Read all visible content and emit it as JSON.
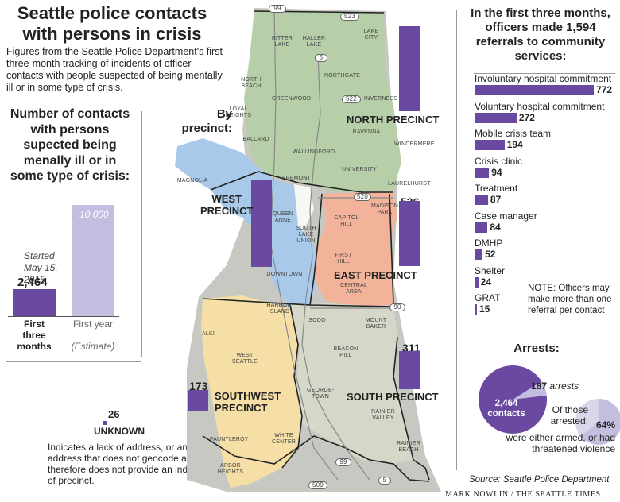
{
  "title": "Seattle police contacts with persons in crisis",
  "intro": "Figures from the Seattle Police Department's first three-month tracking of incidents of officer contacts with people suspected of being mentally ill or in some type of crisis.",
  "colors": {
    "purple": "#6a4aa0",
    "light_purple": "#c3bde0",
    "north": "#b6cfa9",
    "west": "#a9c9ea",
    "east": "#f3b29a",
    "southwest": "#f5dfa6",
    "south": "#cfd1c4"
  },
  "chart_data": [
    {
      "type": "bar",
      "title": "Number of contacts with persons supected being menally ill or in some type of crisis:",
      "annotation": "Started May 15, 2015",
      "categories": [
        "First three months",
        "First year (Estimate)"
      ],
      "values": [
        2464,
        10000
      ],
      "value_labels": [
        "2,464",
        "10,000"
      ]
    },
    {
      "type": "bar",
      "title": "By precinct:",
      "categories": [
        "North Precinct",
        "West Precinct",
        "East Precinct",
        "South Precinct",
        "Southwest Precinct",
        "Unknown"
      ],
      "values": [
        699,
        719,
        536,
        311,
        173,
        26
      ]
    },
    {
      "type": "bar",
      "title": "In the first three months, officers made 1,594 referrals to community services:",
      "categories": [
        "Involuntary hospital commitment",
        "Voluntary hospital commitment",
        "Mobile crisis team",
        "Crisis clinic",
        "Treatment",
        "Case manager",
        "DMHP",
        "Shelter",
        "GRAT"
      ],
      "values": [
        772,
        272,
        194,
        94,
        87,
        84,
        52,
        24,
        15
      ]
    },
    {
      "type": "pie",
      "title": "Arrests:",
      "slices": [
        {
          "label": "contacts",
          "value": 2464
        },
        {
          "label": "arrests",
          "value": 187
        }
      ]
    },
    {
      "type": "pie",
      "slices": [
        {
          "label": "were either armed, or had threatened violence",
          "value": 64
        },
        {
          "label": "other",
          "value": 36
        }
      ]
    }
  ],
  "left": {
    "heading": "Number of contacts with persons supected being menally ill or in some type of crisis:",
    "started": "Started May 15, 2015",
    "bar1_value": "2,464",
    "bar1_label": "First three months",
    "bar2_value": "10,000",
    "bar2_label": "First year",
    "bar2_sub": "(Estimate)"
  },
  "unknown": {
    "value": "26",
    "label": "UNKNOWN",
    "text": "Indicates a lack of address, or an address that does not geocode and therefore does not provide an indication of precinct."
  },
  "map": {
    "by_precinct": "By precinct:",
    "north": {
      "value": "699",
      "name": "NORTH PRECINCT"
    },
    "west": {
      "value": "719",
      "name1": "WEST",
      "name2": "PRECINCT"
    },
    "east": {
      "value": "536",
      "name": "EAST PRECINCT"
    },
    "south": {
      "value": "311",
      "name": "SOUTH PRECINCT"
    },
    "southwest": {
      "value": "173",
      "name1": "SOUTHWEST",
      "name2": "PRECINCT"
    },
    "neighborhoods": [
      "BITTER LAKE",
      "HALLER LAKE",
      "LAKE CITY",
      "NORTHGATE",
      "NORTH BEACH",
      "GREENWOOD",
      "INVERNESS",
      "LOYAL HEIGHTS",
      "RAVENNA",
      "BALLARD",
      "WALLINGFORD",
      "WINDERMERE",
      "UNIVERSITY",
      "FREMONT",
      "LAURELHURST",
      "MAGNOLIA",
      "QUEEN ANNE",
      "MADISON PARK",
      "CAPITOL HILL",
      "SOUTH LAKE UNION",
      "FIRST HILL",
      "DOWNTOWN",
      "CENTRAL AREA",
      "HARBOR ISLAND",
      "SODO",
      "MOUNT BAKER",
      "ALKI",
      "WEST SEATTLE",
      "BEACON HILL",
      "GEORGE-TOWN",
      "RAINIER VALLEY",
      "FAUNTLEROY",
      "WHITE CENTER",
      "RAINIER BEACH",
      "ARBOR HEIGHTS"
    ],
    "highways": [
      "99",
      "523",
      "5",
      "522",
      "520",
      "90",
      "99",
      "509",
      "5"
    ]
  },
  "referrals": {
    "heading": "In the first three months, officers made 1,594 referrals to community services:",
    "items": [
      {
        "label": "Involuntary hospital commitment",
        "value": "772"
      },
      {
        "label": "Voluntary hospital commitment",
        "value": "272"
      },
      {
        "label": "Mobile crisis team",
        "value": "194"
      },
      {
        "label": "Crisis clinic",
        "value": "94"
      },
      {
        "label": "Treatment",
        "value": "87"
      },
      {
        "label": "Case manager",
        "value": "84"
      },
      {
        "label": "DMHP",
        "value": "52"
      },
      {
        "label": "Shelter",
        "value": "24"
      },
      {
        "label": "GRAT",
        "value": "15"
      }
    ],
    "note": "NOTE: Officers may make more than one referral per contact"
  },
  "arrests": {
    "heading": "Arrests:",
    "contacts_value": "2,464",
    "contacts_label": "contacts",
    "arrests_value": "187",
    "arrests_label": "arrests",
    "of_those": "Of those arrested:",
    "pct": "64%",
    "pct_text": "were either armed, or had threatened violence"
  },
  "source": "Source: Seattle Police Department",
  "credit": "MARK NOWLIN / THE SEATTLE TIMES"
}
